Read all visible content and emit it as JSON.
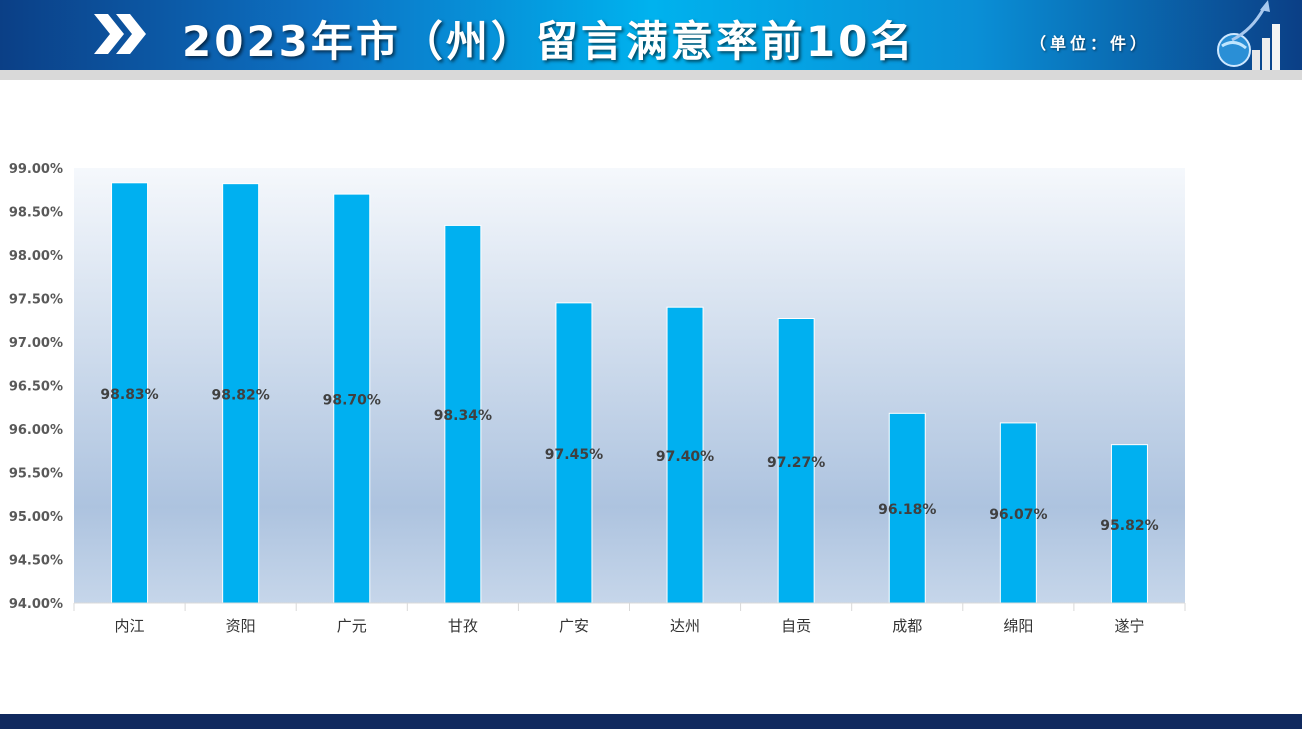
{
  "header": {
    "title": "2023年市（州）留言满意率前10名",
    "unit": "（单位：件）",
    "icon": "double-chevron-right-icon",
    "logo": "globe-growth-chart-icon"
  },
  "colors": {
    "bar": "#00b0f0",
    "header_mid": "#00b2ee",
    "header_edge": "#0b3f86",
    "footer": "#10295e",
    "label": "#404040"
  },
  "chart_data": {
    "type": "bar",
    "categories": [
      "内江",
      "资阳",
      "广元",
      "甘孜",
      "广安",
      "达州",
      "自贡",
      "成都",
      "绵阳",
      "遂宁"
    ],
    "values": [
      98.83,
      98.82,
      98.7,
      98.34,
      97.45,
      97.4,
      97.27,
      96.18,
      96.07,
      95.82
    ],
    "data_labels": [
      "98.83%",
      "98.82%",
      "98.70%",
      "98.34%",
      "97.45%",
      "97.40%",
      "97.27%",
      "96.18%",
      "96.07%",
      "95.82%"
    ],
    "ylim": [
      94,
      99
    ],
    "yticks": [
      "94.00%",
      "94.50%",
      "95.00%",
      "95.50%",
      "96.00%",
      "96.50%",
      "97.00%",
      "97.50%",
      "98.00%",
      "98.50%",
      "99.00%"
    ],
    "grid": false,
    "title": "",
    "xlabel": "",
    "ylabel": ""
  }
}
